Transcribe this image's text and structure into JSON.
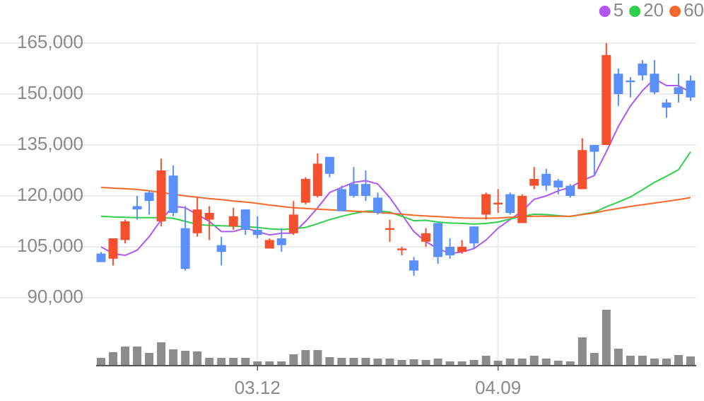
{
  "chart_data": {
    "type": "candlestick",
    "categories": [
      null,
      null,
      null,
      null,
      null,
      null,
      null,
      null,
      null,
      null,
      null,
      null,
      null,
      "03.12",
      null,
      null,
      null,
      null,
      null,
      null,
      null,
      null,
      null,
      null,
      null,
      null,
      null,
      null,
      null,
      null,
      null,
      null,
      null,
      "04.09",
      null,
      null,
      null,
      null,
      null,
      null,
      null,
      null,
      null,
      null,
      null,
      null,
      null,
      null,
      null,
      null
    ],
    "open": [
      103000,
      101500,
      107000,
      117000,
      121000,
      112500,
      126000,
      110500,
      109000,
      113000,
      105500,
      111000,
      116000,
      110000,
      104500,
      107500,
      109000,
      118000,
      120000,
      131500,
      122000,
      123500,
      123500,
      119500,
      110000,
      104000,
      101000,
      106500,
      112000,
      105000,
      103500,
      111000,
      114500,
      117500,
      120500,
      112000,
      123000,
      126500,
      124500,
      123000,
      122000,
      135000,
      135000,
      156000,
      154000,
      159000,
      156000,
      147500,
      152000,
      154000
    ],
    "high": [
      103500,
      107500,
      113000,
      120000,
      121500,
      131000,
      129000,
      117000,
      119500,
      117000,
      108000,
      116500,
      116000,
      114000,
      107500,
      110500,
      118500,
      125500,
      132500,
      131500,
      123000,
      128500,
      127500,
      121000,
      113000,
      105000,
      102000,
      110500,
      112000,
      107500,
      107000,
      111000,
      121000,
      122000,
      121000,
      120500,
      128500,
      128000,
      125000,
      123500,
      137000,
      135000,
      165000,
      157500,
      155000,
      160000,
      160000,
      148500,
      156000,
      155500
    ],
    "low": [
      100500,
      99500,
      106000,
      113000,
      114500,
      111000,
      114000,
      98000,
      108000,
      107000,
      99500,
      110000,
      108500,
      107500,
      104500,
      103500,
      108500,
      117500,
      119500,
      125500,
      115500,
      119500,
      118500,
      114500,
      106500,
      102500,
      96500,
      105000,
      100000,
      101500,
      103000,
      104500,
      113000,
      115000,
      114500,
      112000,
      122000,
      121500,
      120500,
      119500,
      122000,
      126000,
      135000,
      146500,
      149000,
      154000,
      150000,
      143000,
      147500,
      148000
    ],
    "close": [
      100500,
      107500,
      112500,
      116000,
      118500,
      127500,
      115000,
      98500,
      116000,
      115000,
      103500,
      114000,
      110000,
      108500,
      107000,
      105500,
      114500,
      125000,
      129500,
      126500,
      115500,
      120000,
      120000,
      115000,
      110500,
      104500,
      98000,
      109000,
      102000,
      102500,
      105000,
      106000,
      120500,
      118000,
      115000,
      120000,
      125000,
      123000,
      122500,
      120000,
      133500,
      133000,
      161500,
      150000,
      153500,
      155500,
      150500,
      146000,
      150000,
      149000
    ],
    "up_color": "#f5502e",
    "down_color": "#5b8ff9",
    "series": [
      {
        "name": "5",
        "color": "#b057f0",
        "values": [
          105000,
          103000,
          102500,
          104000,
          108000,
          113000,
          117000,
          116500,
          114500,
          112500,
          109500,
          109500,
          110500,
          109500,
          108500,
          109000,
          109000,
          112500,
          116500,
          121000,
          122500,
          124000,
          124500,
          123500,
          119500,
          114500,
          109500,
          106500,
          104500,
          103000,
          103500,
          104500,
          107000,
          110500,
          113000,
          115500,
          119000,
          120000,
          121500,
          122500,
          124500,
          126000,
          133000,
          140500,
          146500,
          151000,
          154500,
          152500,
          152500,
          150500
        ]
      },
      {
        "name": "20",
        "color": "#2fd14a",
        "values": [
          114000,
          113800,
          113700,
          113600,
          113600,
          113600,
          113400,
          112500,
          111600,
          111300,
          111200,
          111100,
          111000,
          110700,
          110300,
          110100,
          110300,
          110700,
          111800,
          113000,
          114000,
          114800,
          115500,
          115600,
          115200,
          114000,
          112700,
          112800,
          112300,
          112000,
          111900,
          111700,
          111900,
          112300,
          113200,
          114000,
          114600,
          114500,
          114200,
          113900,
          114600,
          115200,
          116800,
          118200,
          119700,
          121800,
          124000,
          125800,
          127700,
          133000
        ]
      },
      {
        "name": "60",
        "color": "#f4692a",
        "values": [
          122500,
          122300,
          122100,
          121900,
          121500,
          121000,
          120500,
          120000,
          119600,
          119200,
          118900,
          118500,
          118200,
          117800,
          117300,
          116900,
          116500,
          116300,
          116100,
          115900,
          115700,
          115500,
          115300,
          115100,
          114900,
          114600,
          114300,
          114100,
          113900,
          113700,
          113500,
          113400,
          113400,
          113500,
          113700,
          113900,
          114000,
          114000,
          114000,
          114000,
          114500,
          115000,
          115700,
          116300,
          116900,
          117400,
          117900,
          118400,
          118900,
          119500
        ]
      }
    ],
    "volume": [
      11,
      19,
      27,
      27,
      18,
      33,
      23,
      21,
      20,
      11,
      11,
      11,
      11,
      6,
      6,
      6,
      16,
      22,
      22,
      12,
      11,
      11,
      11,
      10,
      10,
      8,
      9,
      8,
      10,
      6,
      6,
      8,
      14,
      7,
      10,
      10,
      14,
      10,
      7,
      6,
      40,
      18,
      79,
      24,
      14,
      14,
      10,
      10,
      15,
      13
    ],
    "volume_color": "#8c8c8c",
    "ylim": [
      85000,
      170000
    ],
    "yticks": [
      {
        "value": 90000,
        "label": "90,000"
      },
      {
        "value": 105000,
        "label": "105,000"
      },
      {
        "value": 120000,
        "label": "120,000"
      },
      {
        "value": 135000,
        "label": "135,000"
      },
      {
        "value": 150000,
        "label": "150,000"
      },
      {
        "value": 165000,
        "label": "165,000"
      }
    ],
    "grid": true
  }
}
